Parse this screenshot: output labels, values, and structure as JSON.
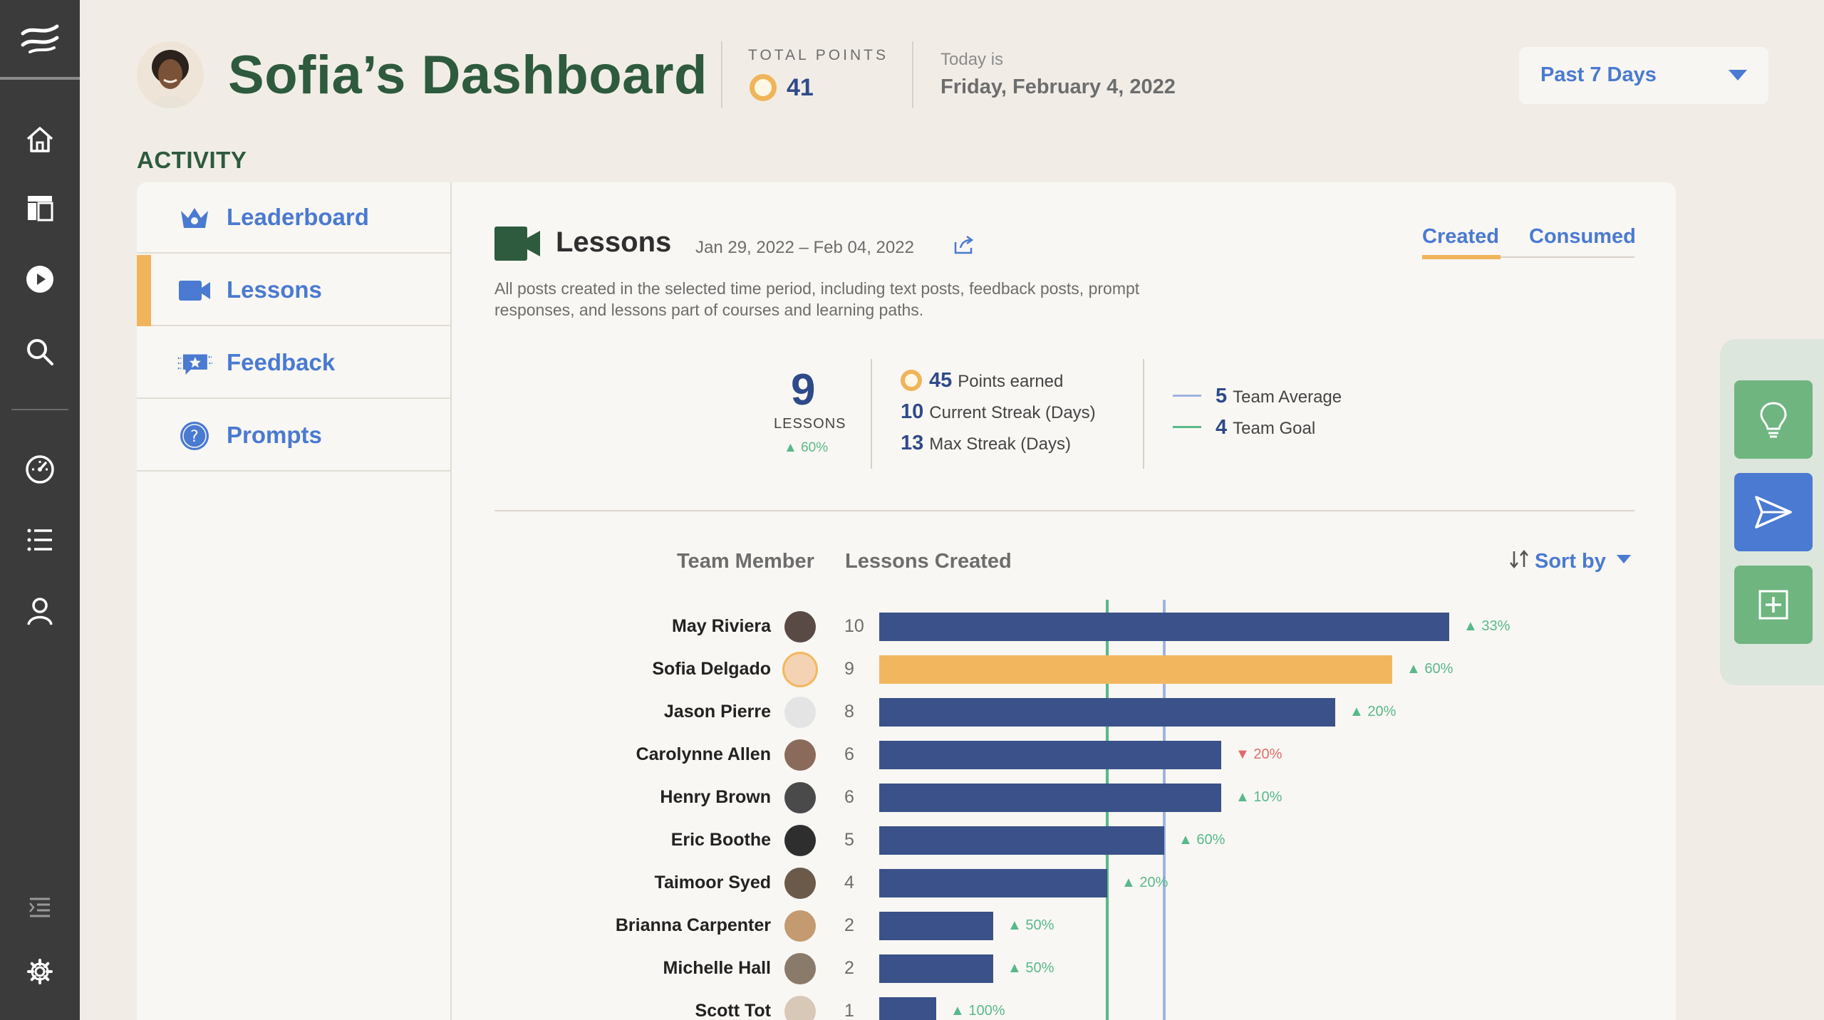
{
  "header": {
    "title": "Sofia’s Dashboard",
    "total_points_label": "TOTAL POINTS",
    "total_points_value": "41",
    "today_label": "Today is",
    "today_value": "Friday, February 4, 2022",
    "range_select": "Past 7 Days"
  },
  "section_title": "ACTIVITY",
  "sidebar": {
    "items": [
      {
        "label": "Leaderboard",
        "icon": "crown-icon"
      },
      {
        "label": "Lessons",
        "icon": "video-camera-icon"
      },
      {
        "label": "Feedback",
        "icon": "feedback-star-icon"
      },
      {
        "label": "Prompts",
        "icon": "question-icon"
      }
    ]
  },
  "panel": {
    "title": "Lessons",
    "date_range": "Jan 29, 2022 – Feb 04, 2022",
    "tabs": [
      "Created",
      "Consumed"
    ],
    "description": "All posts created in the selected time period, including text posts, feedback posts, prompt responses, and lessons part of courses and learning paths.",
    "big_value": "9",
    "big_label": "LESSONS",
    "big_change": "▲ 60%",
    "stats": [
      {
        "value": "45",
        "label": "Points earned"
      },
      {
        "value": "10",
        "label": "Current Streak (Days)"
      },
      {
        "value": "13",
        "label": "Max Streak (Days)"
      }
    ],
    "legend": [
      {
        "value": "5",
        "label": "Team Average",
        "color": "#9fb3df"
      },
      {
        "value": "4",
        "label": "Team Goal",
        "color": "#57b98a"
      }
    ],
    "col_member": "Team Member",
    "col_lessons": "Lessons Created",
    "sort_label": "Sort by"
  },
  "chart_data": {
    "type": "bar",
    "title": "Lessons Created",
    "categories": [
      "May Riviera",
      "Sofia Delgado",
      "Jason Pierre",
      "Carolynne Allen",
      "Henry Brown",
      "Eric Boothe",
      "Taimoor Syed",
      "Brianna Carpenter",
      "Michelle Hall",
      "Scott Tot"
    ],
    "values": [
      10,
      9,
      8,
      6,
      6,
      5,
      4,
      2,
      2,
      1
    ],
    "value_labels": [
      "10",
      "9",
      "8",
      "6",
      "6",
      "5",
      "4",
      "2",
      "2",
      "1"
    ],
    "changes": [
      "33%",
      "60%",
      "20%",
      "20%",
      "10%",
      "60%",
      "20%",
      "50%",
      "50%",
      "100%"
    ],
    "change_dir": [
      "up",
      "up",
      "up",
      "down",
      "up",
      "up",
      "up",
      "up",
      "up",
      "up"
    ],
    "highlight": "Sofia Delgado",
    "team_goal": 4,
    "team_average": 5,
    "xlim": [
      0,
      10
    ],
    "colors": {
      "bar": "#3a5289",
      "highlight": "#f2b75e",
      "up": "#57b98a",
      "down": "#e06c6c",
      "goal": "#57b98a",
      "average": "#9fb3df"
    }
  },
  "avatars": [
    "#5a4a45",
    "#f3d3b3",
    "#e4e4e4",
    "#8a6a5a",
    "#4a4a4a",
    "#2e2e2e",
    "#6b5a4a",
    "#c49a70",
    "#8a7a6a",
    "#d8c8b8"
  ]
}
